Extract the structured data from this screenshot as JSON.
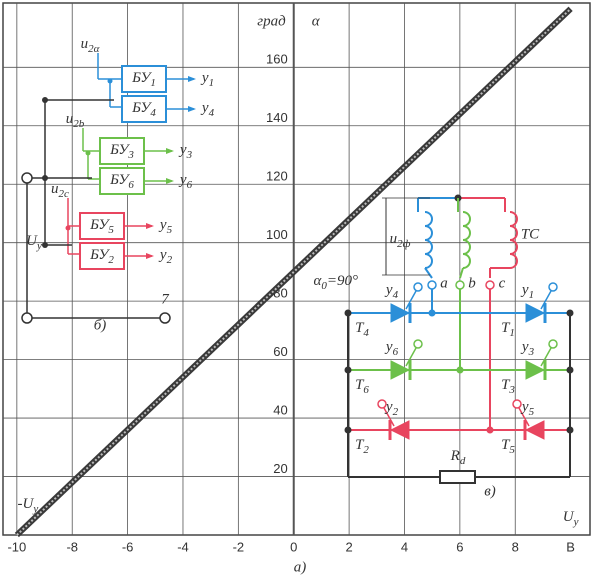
{
  "chart_data": {
    "type": "line",
    "title": "а)",
    "xlabel": "B",
    "ylabel": "α",
    "y_unit": "град",
    "x": [
      -10,
      10
    ],
    "values": [
      0,
      180
    ],
    "color": "#3a3a3a",
    "xlim": [
      -10.5,
      10.7
    ],
    "ylim": [
      0,
      182
    ],
    "xticks": [
      -10,
      -8,
      -6,
      -4,
      -2,
      0,
      2,
      4,
      6,
      8
    ],
    "yticks": [
      20,
      40,
      60,
      80,
      100,
      120,
      140,
      160
    ],
    "grid": true,
    "annotations": [
      {
        "text": "α",
        "sub": "0",
        "tail": "=90°"
      },
      {
        "text": "-U",
        "sub": "y"
      },
      {
        "text": "U",
        "sub": "y"
      }
    ]
  },
  "inset_b": {
    "caption": "б)",
    "terminal_label": "7",
    "input_label": {
      "text": "U",
      "sub": "y"
    },
    "groups": [
      {
        "color": "#2b8fd8",
        "input": {
          "text": "u",
          "sub": "2α"
        },
        "blocks": [
          {
            "text": "БУ",
            "sub": "1"
          },
          {
            "text": "БУ",
            "sub": "4"
          }
        ],
        "outputs": [
          {
            "text": "y",
            "sub": "1"
          },
          {
            "text": "y",
            "sub": "4"
          }
        ]
      },
      {
        "color": "#6cc04a",
        "input": {
          "text": "u",
          "sub": "2b"
        },
        "blocks": [
          {
            "text": "БУ",
            "sub": "3"
          },
          {
            "text": "БУ",
            "sub": "6"
          }
        ],
        "outputs": [
          {
            "text": "y",
            "sub": "3"
          },
          {
            "text": "y",
            "sub": "6"
          }
        ]
      },
      {
        "color": "#e8455f",
        "input": {
          "text": "u",
          "sub": "2c"
        },
        "blocks": [
          {
            "text": "БУ",
            "sub": "5"
          },
          {
            "text": "БУ",
            "sub": "2"
          }
        ],
        "outputs": [
          {
            "text": "y",
            "sub": "5"
          },
          {
            "text": "y",
            "sub": "2"
          }
        ]
      }
    ]
  },
  "inset_c": {
    "caption": "в)",
    "transformer": "TC",
    "phase_voltage": {
      "text": "u",
      "sub": "2ф"
    },
    "phases": [
      "a",
      "b",
      "c"
    ],
    "load": {
      "text": "R",
      "sub": "d"
    },
    "rows": [
      {
        "color": "#2b8fd8",
        "left": {
          "thyristor": {
            "text": "T",
            "sub": "4"
          },
          "gate": {
            "text": "y",
            "sub": "4"
          }
        },
        "right": {
          "thyristor": {
            "text": "T",
            "sub": "1"
          },
          "gate": {
            "text": "y",
            "sub": "1"
          }
        }
      },
      {
        "color": "#6cc04a",
        "left": {
          "thyristor": {
            "text": "T",
            "sub": "6"
          },
          "gate": {
            "text": "y",
            "sub": "6"
          }
        },
        "right": {
          "thyristor": {
            "text": "T",
            "sub": "3"
          },
          "gate": {
            "text": "y",
            "sub": "3"
          }
        }
      },
      {
        "color": "#e8455f",
        "left": {
          "thyristor": {
            "text": "T",
            "sub": "2"
          },
          "gate": {
            "text": "y",
            "sub": "2"
          }
        },
        "right": {
          "thyristor": {
            "text": "T",
            "sub": "5"
          },
          "gate": {
            "text": "y",
            "sub": "5"
          }
        }
      }
    ]
  }
}
